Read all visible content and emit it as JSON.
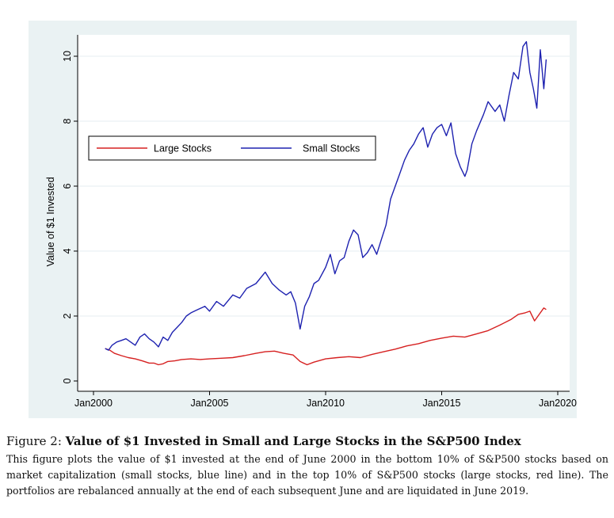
{
  "chart_data": {
    "type": "line",
    "title": "",
    "xlabel": "",
    "ylabel": "Value of $1 Invested",
    "xlim": [
      2000.0,
      2020.0
    ],
    "ylim": [
      0,
      10.5
    ],
    "xticks": [
      {
        "value": 2000,
        "label": "Jan2000"
      },
      {
        "value": 2005,
        "label": "Jan2005"
      },
      {
        "value": 2010,
        "label": "Jan2010"
      },
      {
        "value": 2015,
        "label": "Jan2015"
      },
      {
        "value": 2020,
        "label": "Jan2020"
      }
    ],
    "yticks": [
      {
        "value": 0,
        "label": "0"
      },
      {
        "value": 2,
        "label": "2"
      },
      {
        "value": 4,
        "label": "4"
      },
      {
        "value": 6,
        "label": "6"
      },
      {
        "value": 8,
        "label": "8"
      },
      {
        "value": 10,
        "label": "10"
      }
    ],
    "grid": "horizontal",
    "legend_position": "upper-left",
    "series": [
      {
        "name": "Large Stocks",
        "color": "#d62020",
        "x": [
          2000.5,
          2000.7,
          2000.9,
          2001.2,
          2001.5,
          2001.8,
          2002.1,
          2002.4,
          2002.6,
          2002.8,
          2003.0,
          2003.2,
          2003.5,
          2003.8,
          2004.2,
          2004.6,
          2005.0,
          2005.5,
          2006.0,
          2006.5,
          2007.0,
          2007.4,
          2007.8,
          2008.2,
          2008.6,
          2008.9,
          2009.2,
          2009.5,
          2010.0,
          2010.5,
          2011.0,
          2011.5,
          2012.0,
          2012.5,
          2013.0,
          2013.5,
          2014.0,
          2014.5,
          2015.0,
          2015.5,
          2016.0,
          2016.5,
          2017.0,
          2017.5,
          2018.0,
          2018.3,
          2018.6,
          2018.8,
          2019.0,
          2019.2,
          2019.4,
          2019.5
        ],
        "y": [
          1.0,
          0.95,
          0.85,
          0.78,
          0.72,
          0.68,
          0.62,
          0.55,
          0.55,
          0.5,
          0.53,
          0.6,
          0.62,
          0.66,
          0.68,
          0.66,
          0.68,
          0.7,
          0.72,
          0.78,
          0.85,
          0.9,
          0.92,
          0.85,
          0.8,
          0.6,
          0.5,
          0.58,
          0.68,
          0.72,
          0.75,
          0.72,
          0.82,
          0.9,
          0.98,
          1.08,
          1.15,
          1.25,
          1.32,
          1.38,
          1.35,
          1.45,
          1.55,
          1.72,
          1.9,
          2.05,
          2.1,
          2.15,
          1.85,
          2.05,
          2.25,
          2.2
        ]
      },
      {
        "name": "Small Stocks",
        "color": "#1e22b0",
        "x": [
          2000.5,
          2000.65,
          2000.8,
          2001.0,
          2001.2,
          2001.4,
          2001.6,
          2001.8,
          2002.0,
          2002.2,
          2002.4,
          2002.6,
          2002.8,
          2003.0,
          2003.2,
          2003.4,
          2003.6,
          2003.8,
          2004.0,
          2004.2,
          2004.5,
          2004.8,
          2005.0,
          2005.3,
          2005.6,
          2006.0,
          2006.3,
          2006.6,
          2007.0,
          2007.4,
          2007.7,
          2008.0,
          2008.3,
          2008.5,
          2008.7,
          2008.9,
          2009.1,
          2009.3,
          2009.5,
          2009.7,
          2010.0,
          2010.2,
          2010.4,
          2010.6,
          2010.8,
          2011.0,
          2011.2,
          2011.4,
          2011.6,
          2011.8,
          2012.0,
          2012.2,
          2012.4,
          2012.6,
          2012.8,
          2013.0,
          2013.2,
          2013.4,
          2013.6,
          2013.8,
          2014.0,
          2014.2,
          2014.4,
          2014.6,
          2014.8,
          2015.0,
          2015.2,
          2015.4,
          2015.6,
          2015.8,
          2016.0,
          2016.1,
          2016.3,
          2016.5,
          2016.8,
          2017.0,
          2017.3,
          2017.5,
          2017.7,
          2017.9,
          2018.1,
          2018.3,
          2018.5,
          2018.65,
          2018.8,
          2018.95,
          2019.1,
          2019.25,
          2019.4,
          2019.5
        ],
        "y": [
          1.0,
          0.95,
          1.1,
          1.2,
          1.25,
          1.3,
          1.2,
          1.1,
          1.35,
          1.45,
          1.3,
          1.2,
          1.05,
          1.35,
          1.25,
          1.5,
          1.65,
          1.8,
          2.0,
          2.1,
          2.2,
          2.3,
          2.15,
          2.45,
          2.3,
          2.65,
          2.55,
          2.85,
          3.0,
          3.35,
          3.0,
          2.8,
          2.65,
          2.75,
          2.4,
          1.6,
          2.3,
          2.6,
          3.0,
          3.1,
          3.5,
          3.9,
          3.3,
          3.7,
          3.8,
          4.3,
          4.65,
          4.5,
          3.8,
          3.95,
          4.2,
          3.9,
          4.35,
          4.8,
          5.6,
          6.0,
          6.4,
          6.8,
          7.1,
          7.3,
          7.6,
          7.8,
          7.2,
          7.6,
          7.8,
          7.9,
          7.55,
          7.95,
          7.0,
          6.6,
          6.3,
          6.5,
          7.3,
          7.7,
          8.2,
          8.6,
          8.3,
          8.5,
          8.0,
          8.8,
          9.5,
          9.3,
          10.3,
          10.45,
          9.5,
          9.0,
          8.4,
          10.2,
          9.0,
          9.9
        ]
      }
    ]
  },
  "caption": {
    "figure_label": "Figure 2:",
    "title": "Value of $1 Invested in Small and Large Stocks in the S&P500 Index",
    "text": "This figure plots the value of $1 invested at the end of June 2000 in the bottom 10% of S&P500 stocks based on market capitalization (small stocks, blue line) and in the top 10% of S&P500 stocks (large stocks, red line). The portfolios are rebalanced annually at the end of each subsequent June and are liquidated in June 2019."
  }
}
